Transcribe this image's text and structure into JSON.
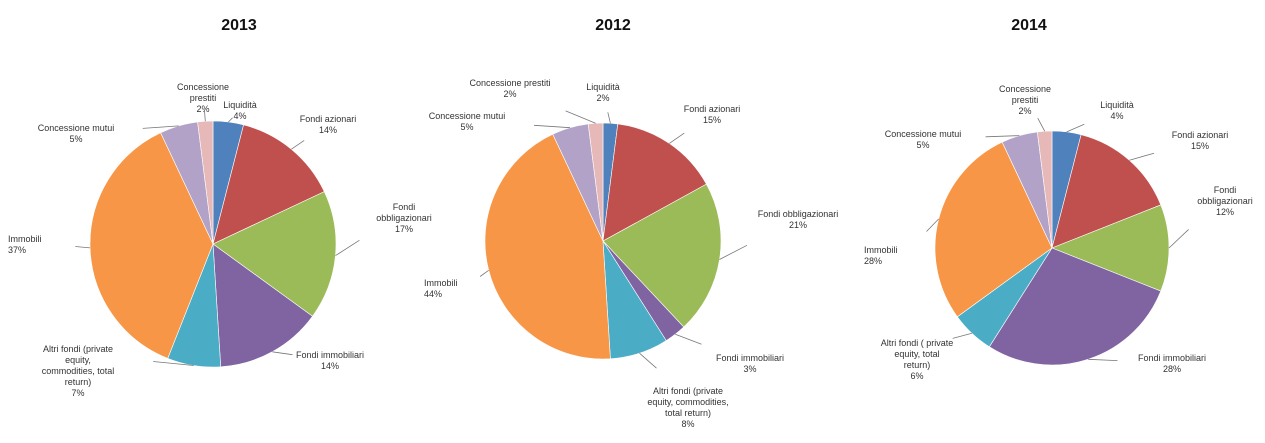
{
  "chart_data": [
    {
      "type": "pie",
      "title": "2013",
      "slices": [
        {
          "name": "Liquidità",
          "value": 4,
          "label": "4%",
          "color": "#4f81bd"
        },
        {
          "name": "Fondi azionari",
          "value": 14,
          "label": "14%",
          "color": "#c0504d"
        },
        {
          "name": "Fondi obbligazionari",
          "value": 17,
          "label": "17%",
          "color": "#9bbb59"
        },
        {
          "name": "Fondi immobiliari",
          "value": 14,
          "label": "14%",
          "color": "#8064a2"
        },
        {
          "name": "Altri fondi (private equity, commodities, total return)",
          "value": 7,
          "label": "7%",
          "color": "#4bacc6"
        },
        {
          "name": "Immobili",
          "value": 37,
          "label": "37%",
          "color": "#f79646"
        },
        {
          "name": "Concessione mutui",
          "value": 5,
          "label": "5%",
          "color": "#b3a2c7"
        },
        {
          "name": "Concessione prestiti",
          "value": 2,
          "label": "2%",
          "color": "#e6b9b8"
        }
      ]
    },
    {
      "type": "pie",
      "title": "2012",
      "slices": [
        {
          "name": "Liquidità",
          "value": 2,
          "label": "2%",
          "color": "#4f81bd"
        },
        {
          "name": "Fondi azionari",
          "value": 15,
          "label": "15%",
          "color": "#c0504d"
        },
        {
          "name": "Fondi obbligazionari",
          "value": 21,
          "label": "21%",
          "color": "#9bbb59"
        },
        {
          "name": "Fondi immobiliari",
          "value": 3,
          "label": "3%",
          "color": "#8064a2"
        },
        {
          "name": "Altri fondi (private equity, commodities, total return)",
          "value": 8,
          "label": "8%",
          "color": "#4bacc6"
        },
        {
          "name": "Immobili",
          "value": 44,
          "label": "44%",
          "color": "#f79646"
        },
        {
          "name": "Concessione mutui",
          "value": 5,
          "label": "5%",
          "color": "#b3a2c7"
        },
        {
          "name": "Concessione prestiti",
          "value": 2,
          "label": "2%",
          "color": "#e6b9b8"
        }
      ]
    },
    {
      "type": "pie",
      "title": "2014",
      "slices": [
        {
          "name": "Liquidità",
          "value": 4,
          "label": "4%",
          "color": "#4f81bd"
        },
        {
          "name": "Fondi azionari",
          "value": 15,
          "label": "15%",
          "color": "#c0504d"
        },
        {
          "name": "Fondi obbligazionari",
          "value": 12,
          "label": "12%",
          "color": "#9bbb59"
        },
        {
          "name": "Fondi immobiliari",
          "value": 28,
          "label": "28%",
          "color": "#8064a2"
        },
        {
          "name": "Altri fondi ( private equity, total return)",
          "value": 6,
          "label": "6%",
          "color": "#4bacc6"
        },
        {
          "name": "Immobili",
          "value": 28,
          "label": "28%",
          "color": "#f79646"
        },
        {
          "name": "Concessione mutui",
          "value": 5,
          "label": "5%",
          "color": "#b3a2c7"
        },
        {
          "name": "Concessione prestiti",
          "value": 2,
          "label": "2%",
          "color": "#e6b9b8"
        }
      ]
    }
  ]
}
